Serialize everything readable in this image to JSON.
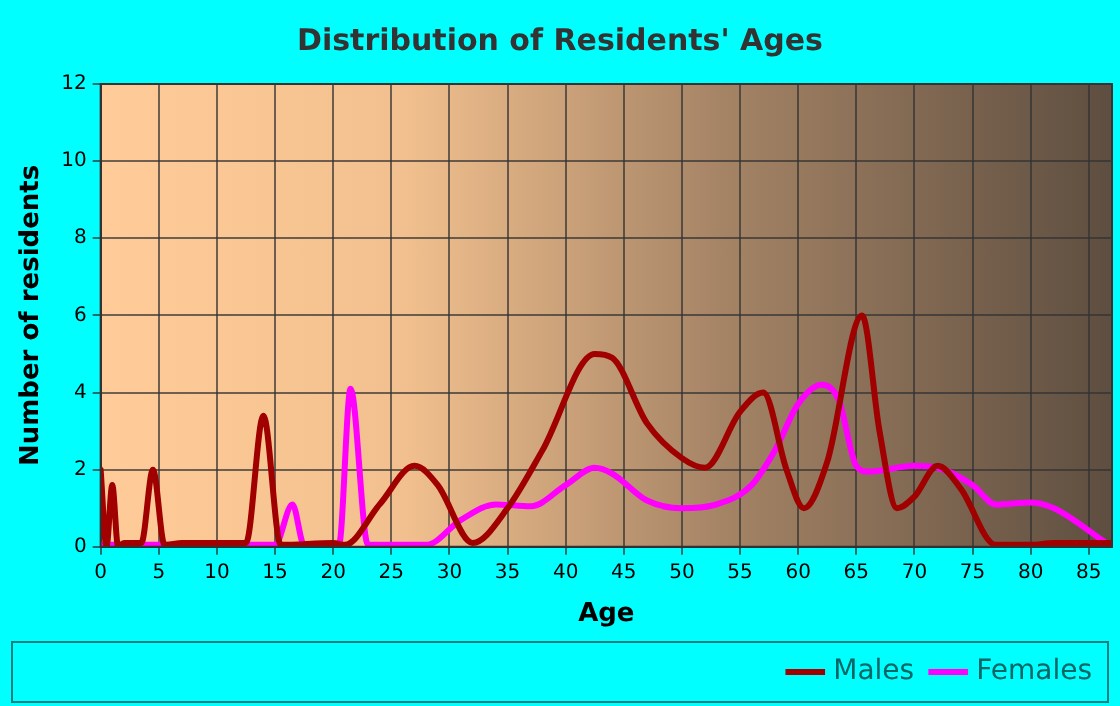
{
  "chart_data": {
    "type": "line",
    "title": "Distribution of Residents' Ages",
    "xlabel": "Age",
    "ylabel": "Number of residents",
    "xlim": [
      0,
      87
    ],
    "xticks": [
      0,
      5,
      10,
      15,
      20,
      25,
      30,
      35,
      40,
      45,
      50,
      55,
      60,
      65,
      70,
      75,
      80,
      85
    ],
    "ylim": [
      0,
      12
    ],
    "yticks": [
      0,
      2,
      4,
      6,
      8,
      10,
      12
    ],
    "grid": true,
    "legend": "bottom right",
    "marker": "none",
    "line_style": "solid",
    "series": [
      {
        "name": "Males",
        "color": "#a00000",
        "x": [
          0,
          0.5,
          1,
          1.5,
          2,
          3.5,
          4.5,
          5.5,
          7,
          12.5,
          14,
          15.5,
          20,
          21,
          24,
          27,
          29,
          32,
          35,
          38,
          42.5,
          44,
          47,
          50,
          52,
          55,
          57,
          59,
          60.5,
          62.5,
          65.5,
          67,
          68.5,
          70,
          72,
          74,
          77,
          80,
          82,
          87
        ],
        "values": [
          2,
          0,
          1.6,
          0,
          0.1,
          0.1,
          2,
          0.05,
          0.1,
          0.1,
          3.4,
          0.05,
          0.1,
          0.05,
          1.1,
          2.1,
          1.6,
          0.1,
          1,
          2.5,
          5,
          4.9,
          3.2,
          2.3,
          2.05,
          3.5,
          4,
          2,
          1,
          2.2,
          6,
          3,
          1,
          1.3,
          2.1,
          1.5,
          0.05,
          0.05,
          0.1,
          0.1
        ]
      },
      {
        "name": "Females",
        "color": "#ff00ff",
        "x": [
          0,
          13,
          15,
          16.5,
          17.5,
          20.5,
          21.5,
          23,
          28,
          31,
          34,
          37,
          40,
          42.5,
          44,
          47,
          50,
          53,
          56,
          58,
          60,
          62,
          63.5,
          65,
          66,
          70,
          72,
          75,
          77,
          80,
          82,
          86.5
        ],
        "values": [
          0.05,
          0.05,
          0.05,
          1.1,
          0.05,
          0.05,
          4.1,
          0.05,
          0.05,
          0.7,
          1.1,
          1.05,
          1.6,
          2.05,
          1.9,
          1.2,
          1,
          1.1,
          1.6,
          2.5,
          3.7,
          4.2,
          3.8,
          2.1,
          1.95,
          2.1,
          2.05,
          1.6,
          1.1,
          1.15,
          1,
          0.1
        ]
      }
    ]
  }
}
